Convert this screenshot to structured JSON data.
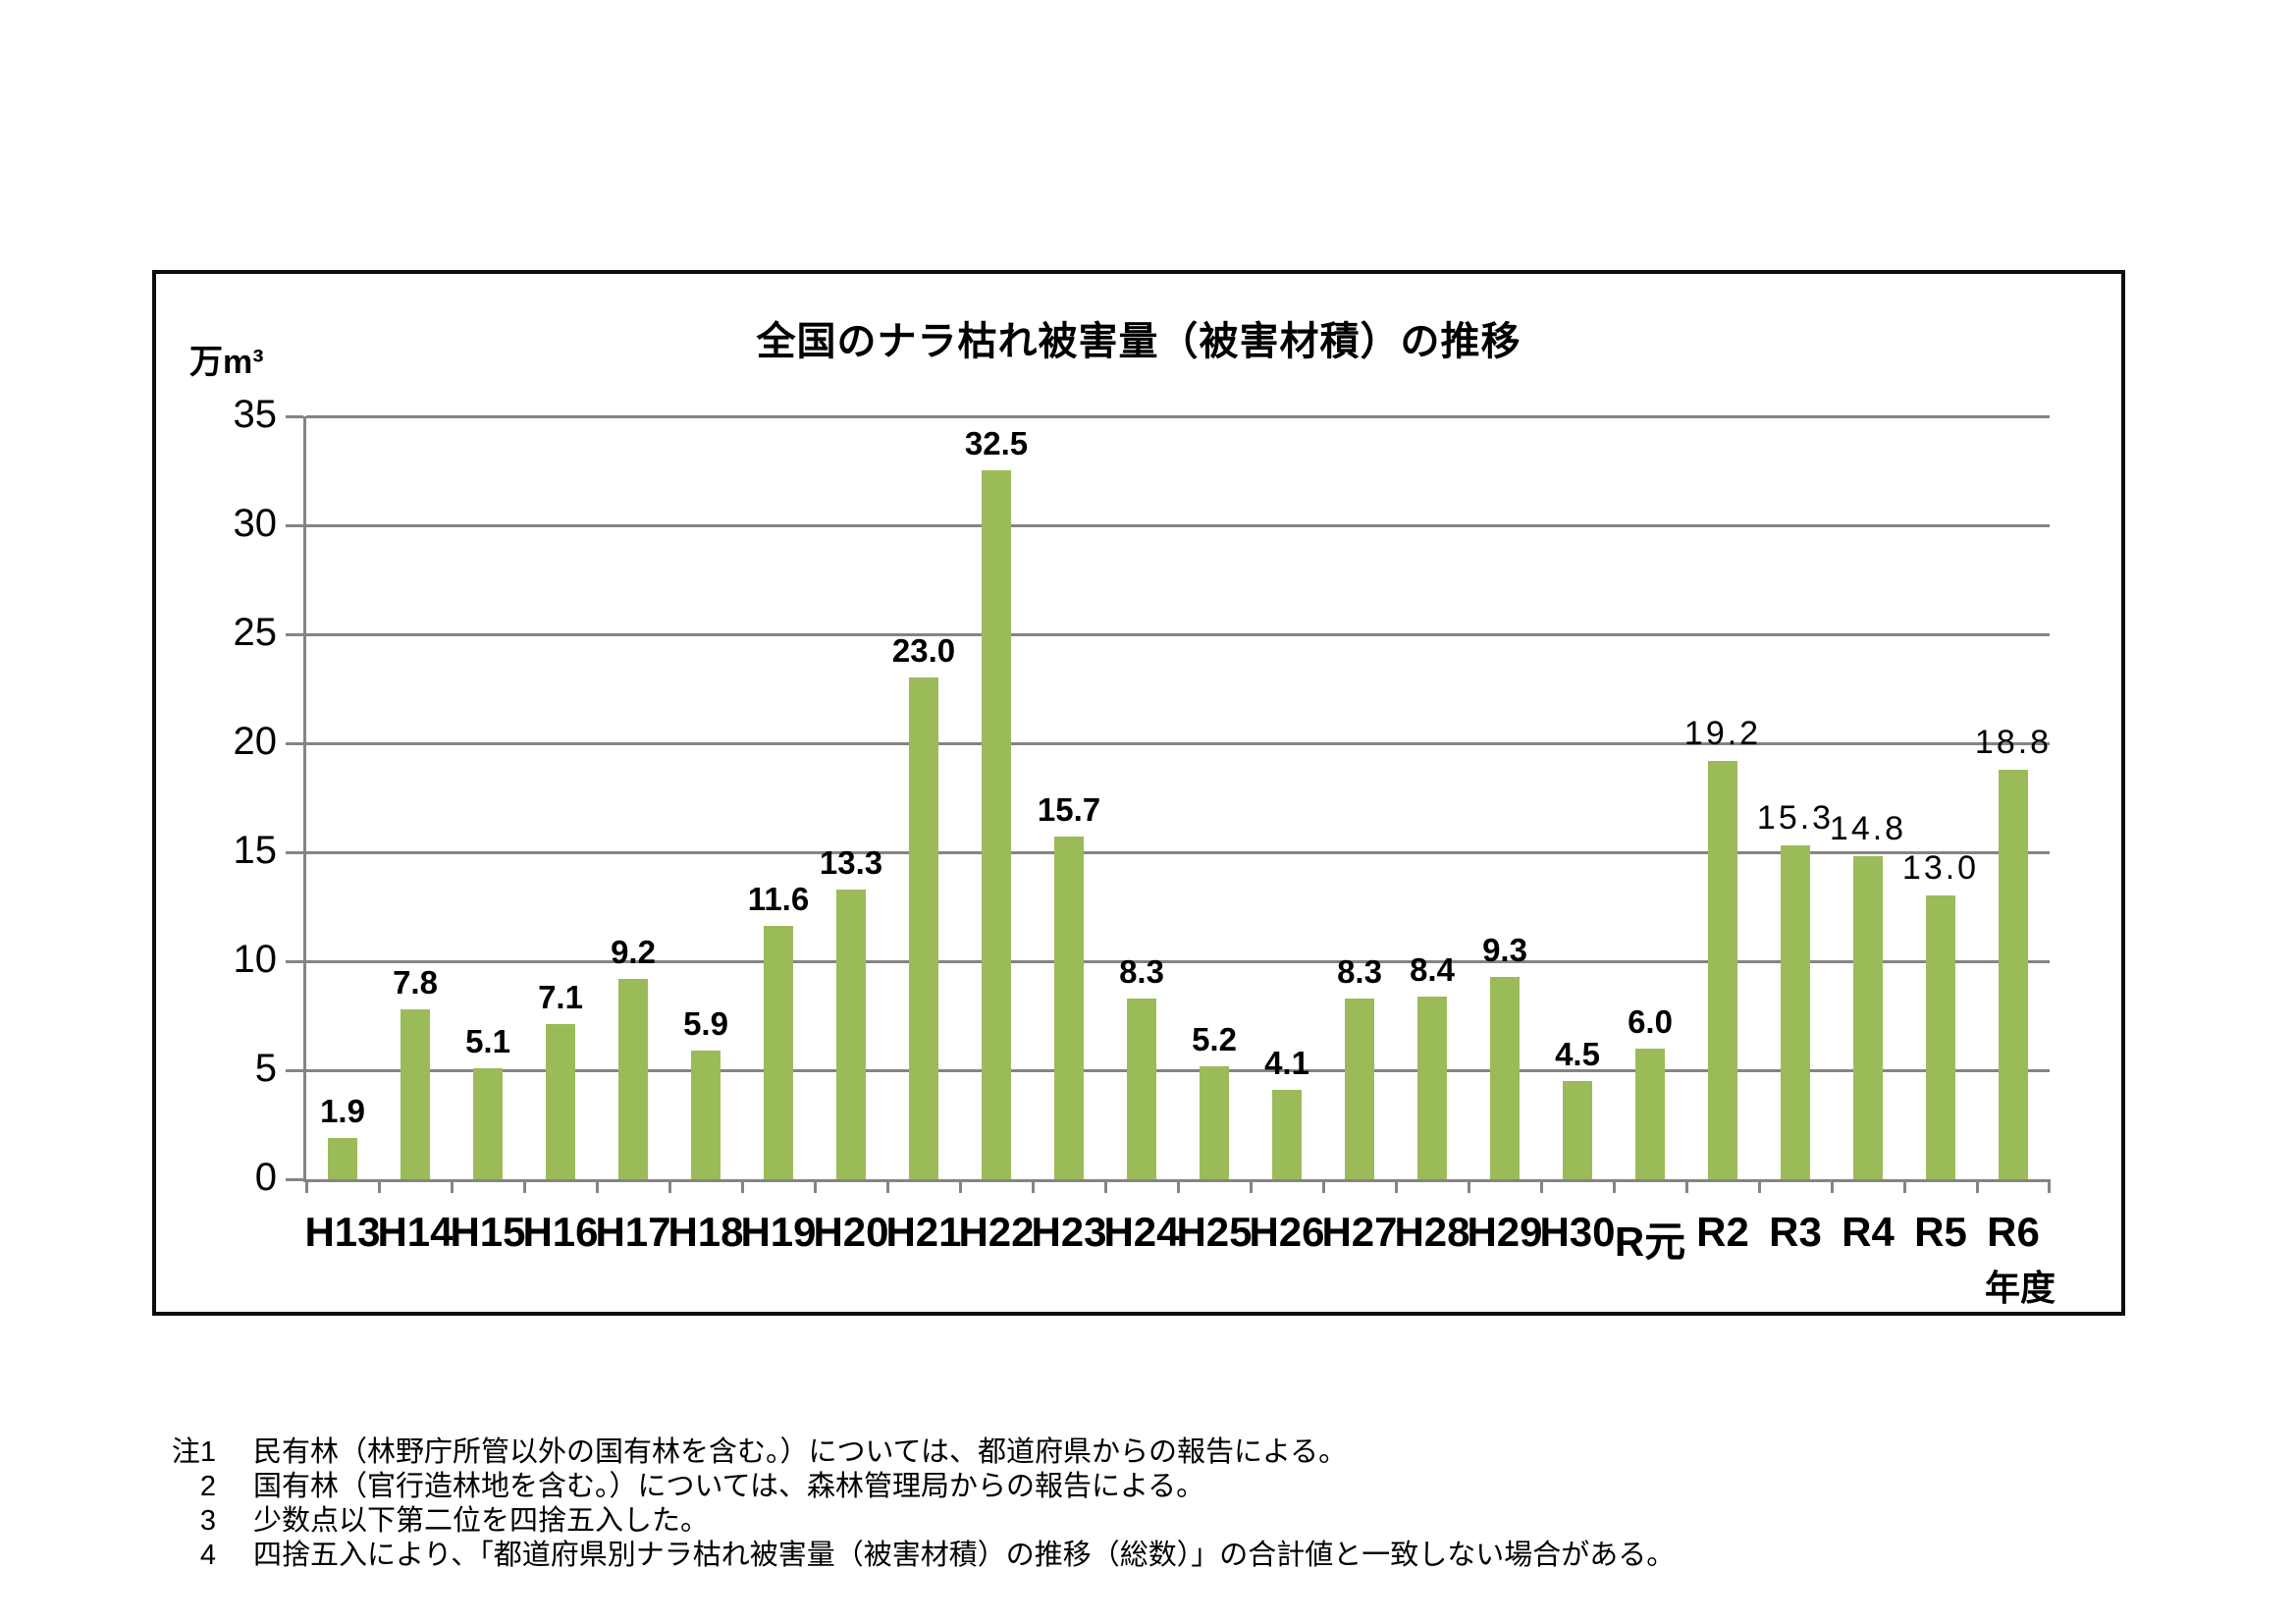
{
  "chart": {
    "unit_label": "万m³",
    "x_axis_suffix": "年度"
  },
  "chart_data": {
    "type": "bar",
    "title": "全国のナラ枯れ被害量（被害材積）の推移",
    "ylabel": "万m³",
    "xlabel": "年度",
    "ylim": [
      0,
      35
    ],
    "yticks": [
      0,
      5,
      10,
      15,
      20,
      25,
      30,
      35
    ],
    "grid": true,
    "legend": "none",
    "categories": [
      "H13",
      "H14",
      "H15",
      "H16",
      "H17",
      "H18",
      "H19",
      "H20",
      "H21",
      "H22",
      "H23",
      "H24",
      "H25",
      "H26",
      "H27",
      "H28",
      "H29",
      "H30",
      "R元",
      "R2",
      "R3",
      "R4",
      "R5",
      "R6"
    ],
    "values": [
      1.9,
      7.8,
      5.1,
      7.1,
      9.2,
      5.9,
      11.6,
      13.3,
      23.0,
      32.5,
      15.7,
      8.3,
      5.2,
      4.1,
      8.3,
      8.4,
      9.3,
      4.5,
      6.0,
      19.2,
      15.3,
      14.8,
      13.0,
      18.8
    ],
    "labels": [
      "1.9",
      "7.8",
      "5.1",
      "7.1",
      "9.2",
      "5.9",
      "11.6",
      "13.3",
      "23.0",
      "32.5",
      "15.7",
      "8.3",
      "5.2",
      "4.1",
      "8.3",
      "8.4",
      "9.3",
      "4.5",
      "6.0",
      "19.2",
      "15.3",
      "14.8",
      "13.0",
      "18.8"
    ],
    "wide_label_from_index": 19
  },
  "footnotes": [
    {
      "marker": "注1",
      "text": "民有林（林野庁所管以外の国有林を含む。）については、都道府県からの報告による。"
    },
    {
      "marker": "2",
      "text": "国有林（官行造林地を含む。）については、森林管理局からの報告による。"
    },
    {
      "marker": "3",
      "text": "少数点以下第二位を四捨五入した。"
    },
    {
      "marker": "4",
      "text": "四捨五入により、「都道府県別ナラ枯れ被害量（被害材積）の推移（総数）」の合計値と一致しない場合がある。"
    }
  ],
  "colors": {
    "bar": "#9BBB59",
    "grid": "#848484",
    "axis": "#848484",
    "border": "#0d0d0d",
    "text": "#000000",
    "background": "#ffffff"
  }
}
